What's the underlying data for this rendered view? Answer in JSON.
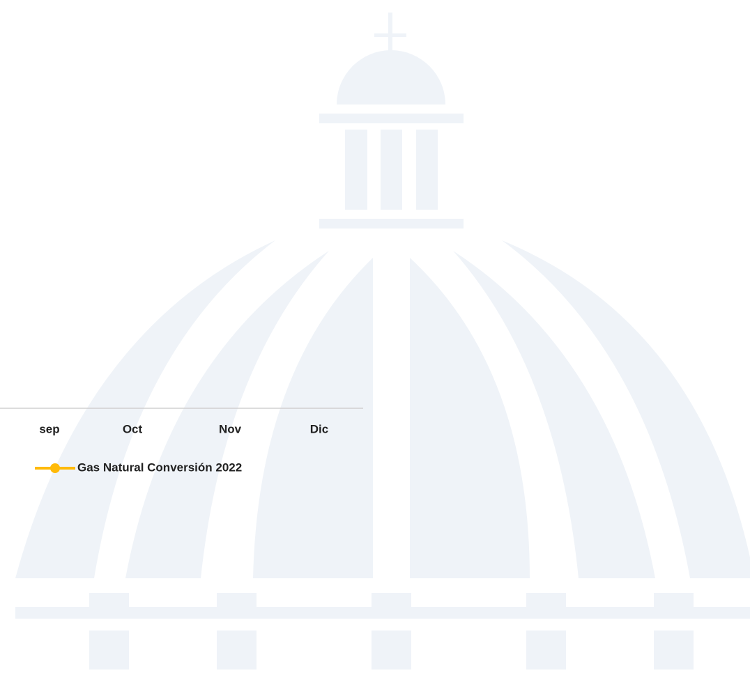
{
  "chart_data": {
    "type": "line",
    "categories": [
      "sep",
      "Oct",
      "Nov",
      "Dic"
    ],
    "series": [
      {
        "name": "Gas Natural Conversión 2022",
        "color": "#ffba08",
        "values": [
          null,
          null,
          null,
          null
        ]
      }
    ]
  }
}
